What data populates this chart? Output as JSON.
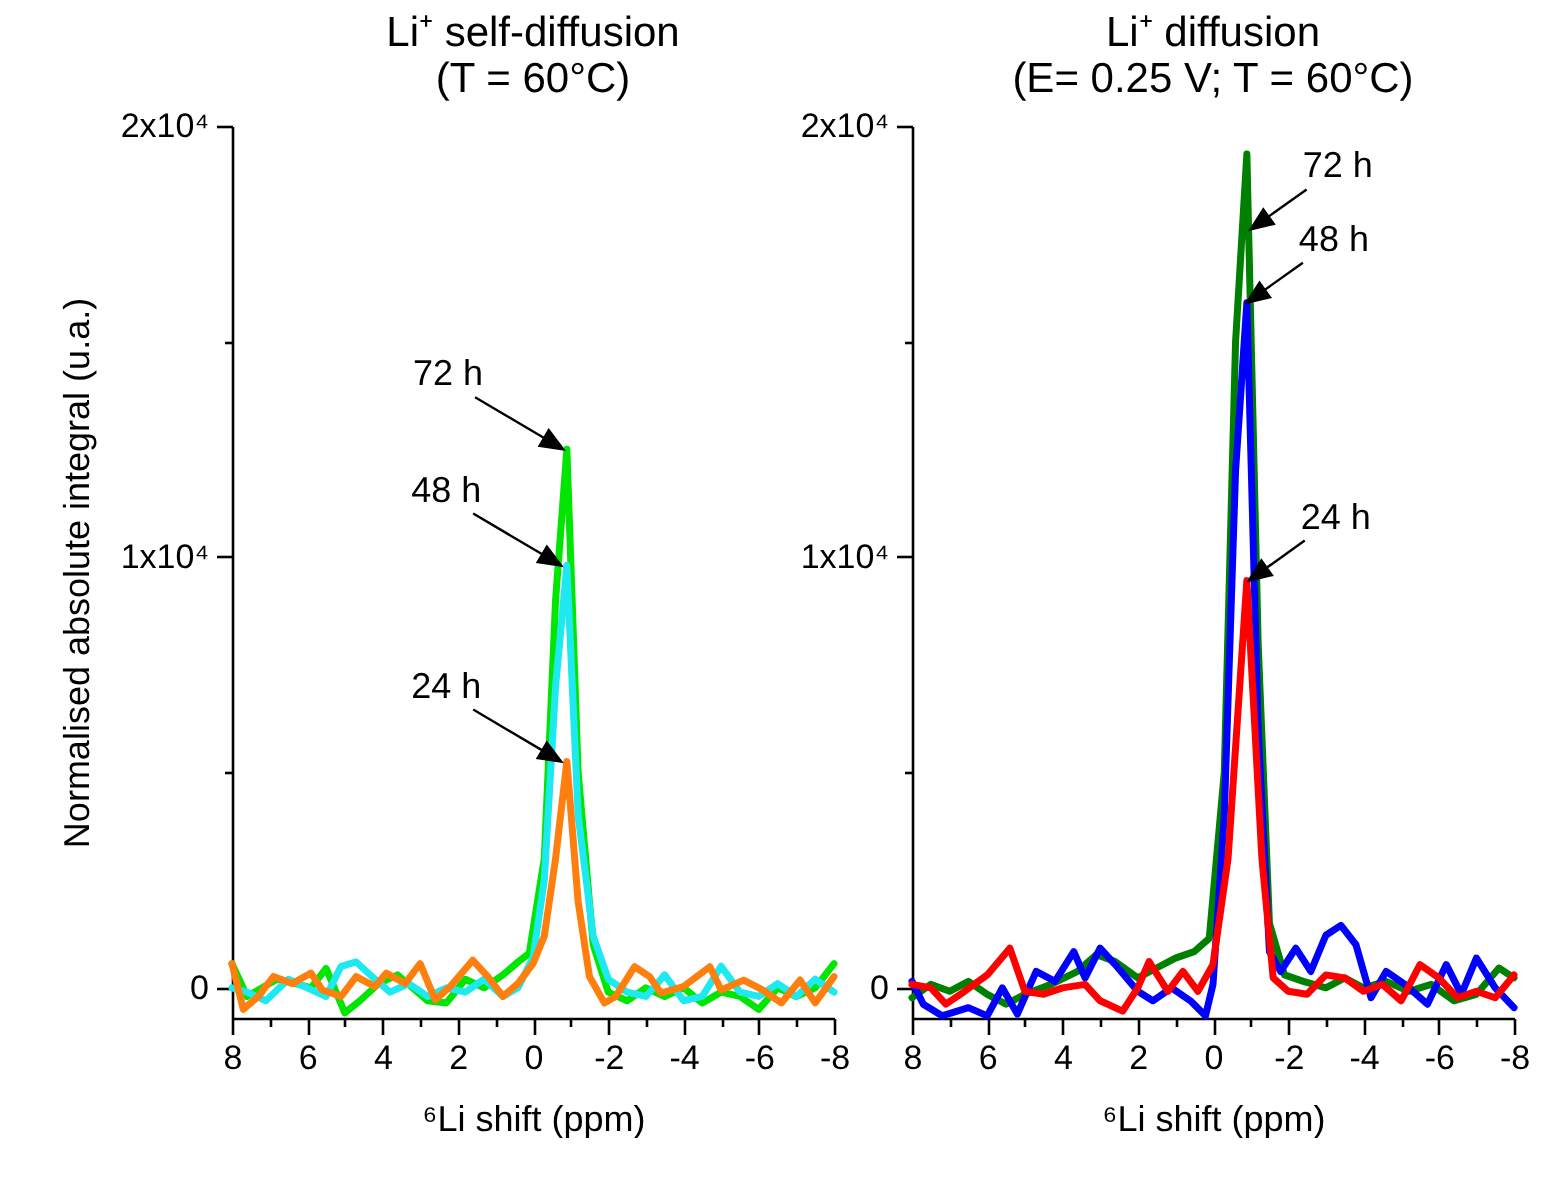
{
  "chart_data": [
    {
      "type": "line",
      "title": "Li⁺ self-diffusion",
      "subtitle": "(T = 60°C)",
      "xlabel": "⁶Li shift (ppm)",
      "ylabel": "Normalised absolute integral (u.a.)",
      "xlim": [
        8,
        -8
      ],
      "ylim": [
        -700,
        20000
      ],
      "xticks": [
        8,
        {
          "value": 7,
          "label": null
        },
        6,
        {
          "value": 5,
          "label": null
        },
        4,
        {
          "value": 3,
          "label": null
        },
        2,
        {
          "value": 1,
          "label": null
        },
        0,
        {
          "value": -1,
          "label": null
        },
        -2,
        {
          "value": -3,
          "label": null
        },
        -4,
        {
          "value": -5,
          "label": null
        },
        -6,
        {
          "value": -7,
          "label": null
        },
        -8
      ],
      "yticks": [
        0,
        {
          "value": 5000,
          "label": null
        },
        {
          "value": 10000,
          "label": "1x10⁴"
        },
        {
          "value": 15000,
          "label": null
        },
        {
          "value": 20000,
          "label": "2x10⁴"
        }
      ],
      "grid": false,
      "legend": false,
      "marker": "none",
      "series": [
        {
          "color": "#00e600",
          "x": [
            8,
            7.6,
            7.2,
            6.8,
            6.3,
            5.9,
            5.5,
            5,
            4.6,
            4.1,
            3.6,
            3.2,
            2.8,
            2.3,
            1.8,
            1.3,
            0.8,
            0.4,
            0.1,
            -0.3,
            -0.6,
            -0.9,
            -1.2,
            -1.6,
            -2,
            -2.5,
            -3,
            -3.5,
            -4,
            -4.5,
            -5,
            -5.5,
            -6,
            -6.5,
            -7,
            -7.5,
            -8
          ],
          "values": [
            560,
            -200,
            0,
            200,
            100,
            0,
            450,
            -580,
            -300,
            100,
            300,
            0,
            -300,
            -350,
            200,
            0,
            300,
            600,
            800,
            3000,
            9000,
            12500,
            5000,
            1000,
            -100,
            -300,
            0,
            -200,
            0,
            -350,
            -100,
            -200,
            -500,
            0,
            -200,
            0,
            560
          ]
        },
        {
          "color": "#1ee8f0",
          "x": [
            8,
            7.6,
            7.1,
            6.5,
            6,
            5.5,
            5.1,
            4.7,
            4.2,
            3.8,
            3.3,
            2.8,
            2.3,
            1.8,
            1.3,
            0.8,
            0.4,
            0,
            -0.3,
            -0.6,
            -0.9,
            -1.2,
            -1.6,
            -2,
            -2.5,
            -3,
            -3.5,
            -4,
            -4.5,
            -5,
            -5.5,
            -6,
            -6.5,
            -7,
            -7.5,
            -8
          ],
          "values": [
            0,
            -100,
            -300,
            200,
            0,
            -200,
            500,
            600,
            200,
            -100,
            100,
            -200,
            0,
            -100,
            200,
            -200,
            0,
            700,
            2500,
            7000,
            9800,
            4000,
            1200,
            200,
            -100,
            -200,
            300,
            -300,
            -200,
            500,
            -100,
            -200,
            100,
            -200,
            200,
            -100
          ]
        },
        {
          "color": "#ff7f0e",
          "x": [
            8,
            7.7,
            7.3,
            6.9,
            6.4,
            5.9,
            5.6,
            5.1,
            4.7,
            4.2,
            3.9,
            3.4,
            3,
            2.6,
            2.2,
            1.6,
            1.2,
            0.8,
            0.4,
            0,
            -0.3,
            -0.6,
            -0.9,
            -1.2,
            -1.5,
            -1.9,
            -2.2,
            -2.7,
            -3.1,
            -3.4,
            -4,
            -4.7,
            -5,
            -5.6,
            -6.1,
            -6.6,
            -7.1,
            -7.5,
            -8
          ],
          "values": [
            560,
            -500,
            -200,
            260,
            100,
            340,
            -50,
            -200,
            260,
            30,
            340,
            100,
            560,
            -280,
            30,
            640,
            260,
            -200,
            100,
            560,
            1200,
            3000,
            5250,
            2000,
            260,
            -350,
            -200,
            490,
            260,
            -120,
            30,
            490,
            -50,
            180,
            -50,
            -350,
            180,
            -350,
            260
          ]
        }
      ],
      "annotations": [
        {
          "text": "72 h",
          "x": -0.8,
          "y": 12500
        },
        {
          "text": "48 h",
          "x": -0.75,
          "y": 9800
        },
        {
          "text": "24 h",
          "x": -0.75,
          "y": 5250
        }
      ]
    },
    {
      "type": "line",
      "title": "Li⁺ diffusion",
      "subtitle": "(E= 0.25 V; T = 60°C)",
      "xlabel": "⁶Li shift (ppm)",
      "xlim": [
        8,
        -8
      ],
      "ylim": [
        -700,
        20000
      ],
      "xticks": [
        8,
        {
          "value": 7,
          "label": null
        },
        6,
        {
          "value": 5,
          "label": null
        },
        4,
        {
          "value": 3,
          "label": null
        },
        2,
        {
          "value": 1,
          "label": null
        },
        0,
        {
          "value": -1,
          "label": null
        },
        -2,
        {
          "value": -3,
          "label": null
        },
        -4,
        {
          "value": -5,
          "label": null
        },
        -6,
        {
          "value": -7,
          "label": null
        },
        -8
      ],
      "yticks": [
        0,
        {
          "value": 5000,
          "label": null
        },
        {
          "value": 10000,
          "label": "1x10⁴"
        },
        {
          "value": 15000,
          "label": null
        },
        {
          "value": 20000,
          "label": "2x10⁴"
        }
      ],
      "grid": false,
      "legend": false,
      "marker": "none",
      "series": [
        {
          "color": "#008000",
          "x": [
            8,
            7.5,
            7,
            6.5,
            6,
            5.5,
            5,
            4.3,
            3.6,
            3.1,
            2.6,
            2,
            1.5,
            1,
            0.5,
            0.1,
            -0.3,
            -0.6,
            -0.9,
            -1.2,
            -1.5,
            -1.9,
            -2.4,
            -3,
            -3.5,
            -4,
            -4.6,
            -5.2,
            -5.8,
            -6.4,
            -7,
            -7.6,
            -8
          ],
          "values": [
            -230,
            80,
            -80,
            150,
            -150,
            -380,
            -150,
            80,
            380,
            770,
            610,
            230,
            460,
            690,
            840,
            1150,
            5000,
            15000,
            19350,
            8000,
            1500,
            300,
            150,
            0,
            230,
            0,
            150,
            -80,
            80,
            -300,
            -150,
            460,
            230
          ]
        },
        {
          "color": "#0000ff",
          "x": [
            8,
            7.7,
            7.2,
            6.5,
            6,
            5.6,
            5.2,
            4.7,
            4.2,
            3.7,
            3.4,
            3,
            2.6,
            2,
            1.6,
            1.1,
            0.6,
            0.2,
            0,
            -0.3,
            -0.6,
            -0.9,
            -1.2,
            -1.5,
            -1.8,
            -2.2,
            -2.6,
            -3,
            -3.4,
            -3.8,
            -4.2,
            -4.6,
            -5.1,
            -5.7,
            -6.2,
            -6.6,
            -7,
            -7.5,
            -8
          ],
          "values": [
            150,
            -380,
            -650,
            -460,
            -650,
            0,
            -610,
            380,
            150,
            840,
            230,
            920,
            540,
            -80,
            -300,
            0,
            -300,
            -650,
            80,
            4000,
            12000,
            15900,
            6000,
            840,
            380,
            920,
            380,
            1220,
            1450,
            1000,
            -230,
            380,
            80,
            -380,
            540,
            -150,
            690,
            0,
            -460
          ]
        },
        {
          "color": "#ff0000",
          "x": [
            8,
            7.5,
            7.1,
            6.6,
            6,
            5.4,
            5,
            4.5,
            4,
            3.4,
            3,
            2.4,
            2,
            1.7,
            1.2,
            0.8,
            0.4,
            0,
            -0.4,
            -0.9,
            -1.3,
            -1.6,
            -2,
            -2.5,
            -3,
            -3.5,
            -4,
            -4.5,
            -5,
            -5.5,
            -6,
            -6.5,
            -7,
            -7.5,
            -8
          ],
          "values": [
            80,
            0,
            -380,
            -80,
            300,
            920,
            -80,
            -150,
            0,
            80,
            -300,
            -540,
            0,
            610,
            -80,
            380,
            -80,
            540,
            3000,
            9450,
            3000,
            230,
            -80,
            -150,
            300,
            230,
            -80,
            80,
            -300,
            540,
            230,
            -230,
            -80,
            -230,
            300
          ]
        }
      ],
      "annotations": [
        {
          "text": "72 h",
          "x": -1,
          "y": 17600
        },
        {
          "text": "48 h",
          "x": -0.9,
          "y": 15900
        },
        {
          "text": "24 h",
          "x": -0.95,
          "y": 9450
        }
      ]
    }
  ]
}
